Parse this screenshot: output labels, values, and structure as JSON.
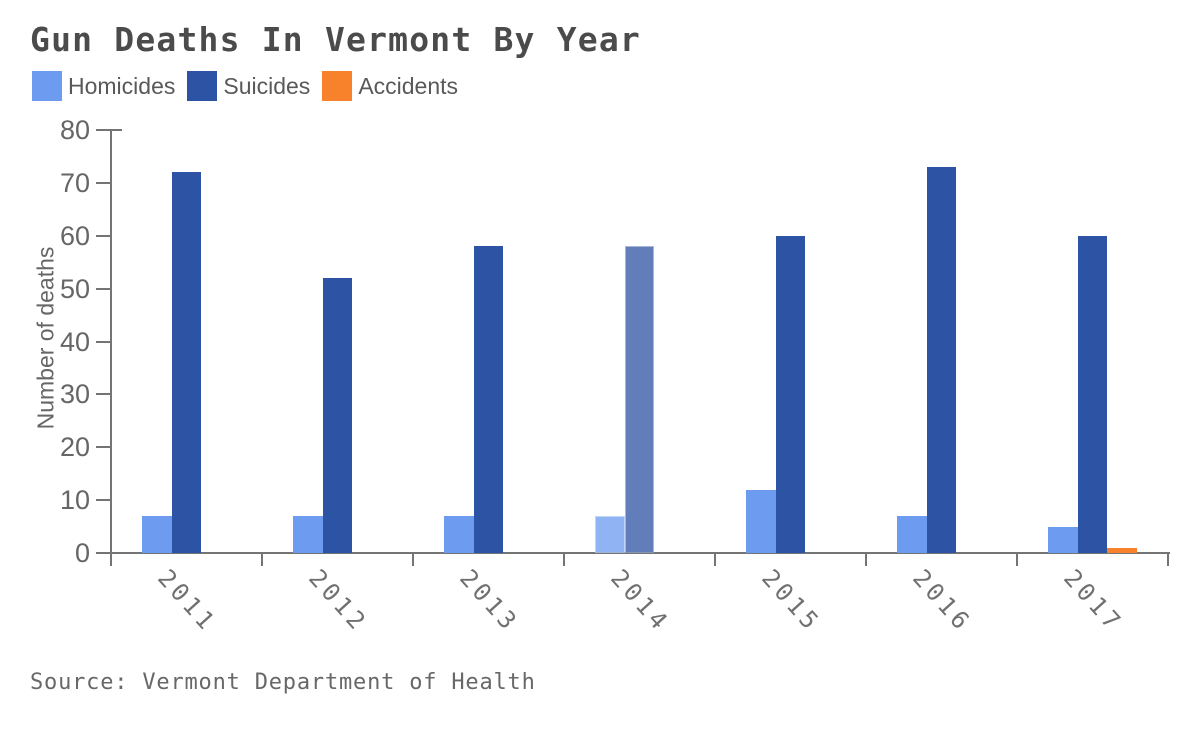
{
  "source": "Source: Vermont Department of Health",
  "chart_data": {
    "type": "bar",
    "title": "Gun Deaths In Vermont By Year",
    "categories": [
      "2011",
      "2012",
      "2013",
      "2014",
      "2015",
      "2016",
      "2017"
    ],
    "series": [
      {
        "name": "Homicides",
        "color": "#6c9bf0",
        "values": [
          7,
          7,
          7,
          7,
          12,
          7,
          5
        ]
      },
      {
        "name": "Suicides",
        "color": "#2d54a4",
        "values": [
          72,
          52,
          58,
          58,
          60,
          73,
          60
        ]
      },
      {
        "name": "Accidents",
        "color": "#f8822c",
        "values": [
          0,
          0,
          0,
          0,
          0,
          0,
          1
        ]
      }
    ],
    "xlabel": "",
    "ylabel": "Number of deaths",
    "ylim": [
      0,
      80
    ],
    "yticks": [
      0,
      10,
      20,
      30,
      40,
      50,
      60,
      70,
      80
    ],
    "highlighted_category": "2014",
    "legend_position": "top-left",
    "grid": false,
    "axis_color": "#747474",
    "text_color": "#666666",
    "title_color": "#4b4b4b"
  }
}
